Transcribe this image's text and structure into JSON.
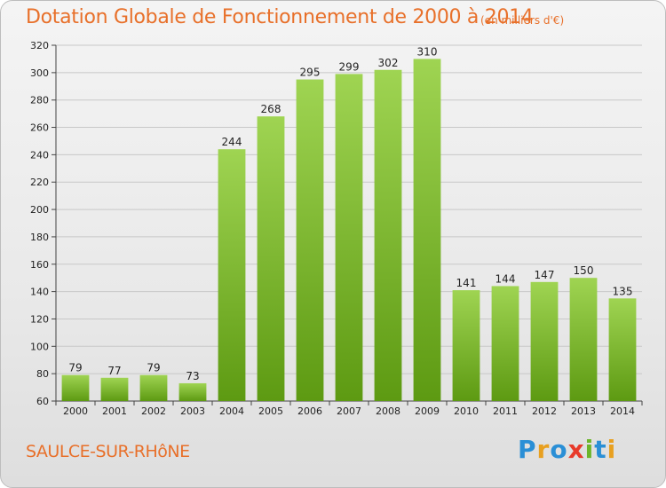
{
  "chart_data": {
    "type": "bar",
    "title": "Dotation Globale de Fonctionnement de 2000 à 2014",
    "subtitle": "(en milliers d'€)",
    "categories": [
      "2000",
      "2001",
      "2002",
      "2003",
      "2004",
      "2005",
      "2006",
      "2007",
      "2008",
      "2009",
      "2010",
      "2011",
      "2012",
      "2013",
      "2014"
    ],
    "values": [
      79,
      77,
      79,
      73,
      244,
      268,
      295,
      299,
      302,
      310,
      141,
      144,
      147,
      150,
      135
    ],
    "ylim": [
      60,
      320
    ],
    "yticks": [
      60,
      80,
      100,
      120,
      140,
      160,
      180,
      200,
      220,
      240,
      260,
      280,
      300,
      320
    ],
    "grid": true,
    "bar_color": "#7cb82f"
  },
  "commune": "SAULCE-SUR-RHôNE",
  "logo": {
    "letters": [
      "P",
      "r",
      "o",
      "x",
      "i",
      "t",
      "i"
    ],
    "colors": [
      "#2a8fd6",
      "#e8a020",
      "#2a8fd6",
      "#e83a2a",
      "#6cb52a",
      "#2a8fd6",
      "#e8a020"
    ]
  },
  "colors": {
    "accent": "#e8702a",
    "grid": "#c8c8c8"
  }
}
